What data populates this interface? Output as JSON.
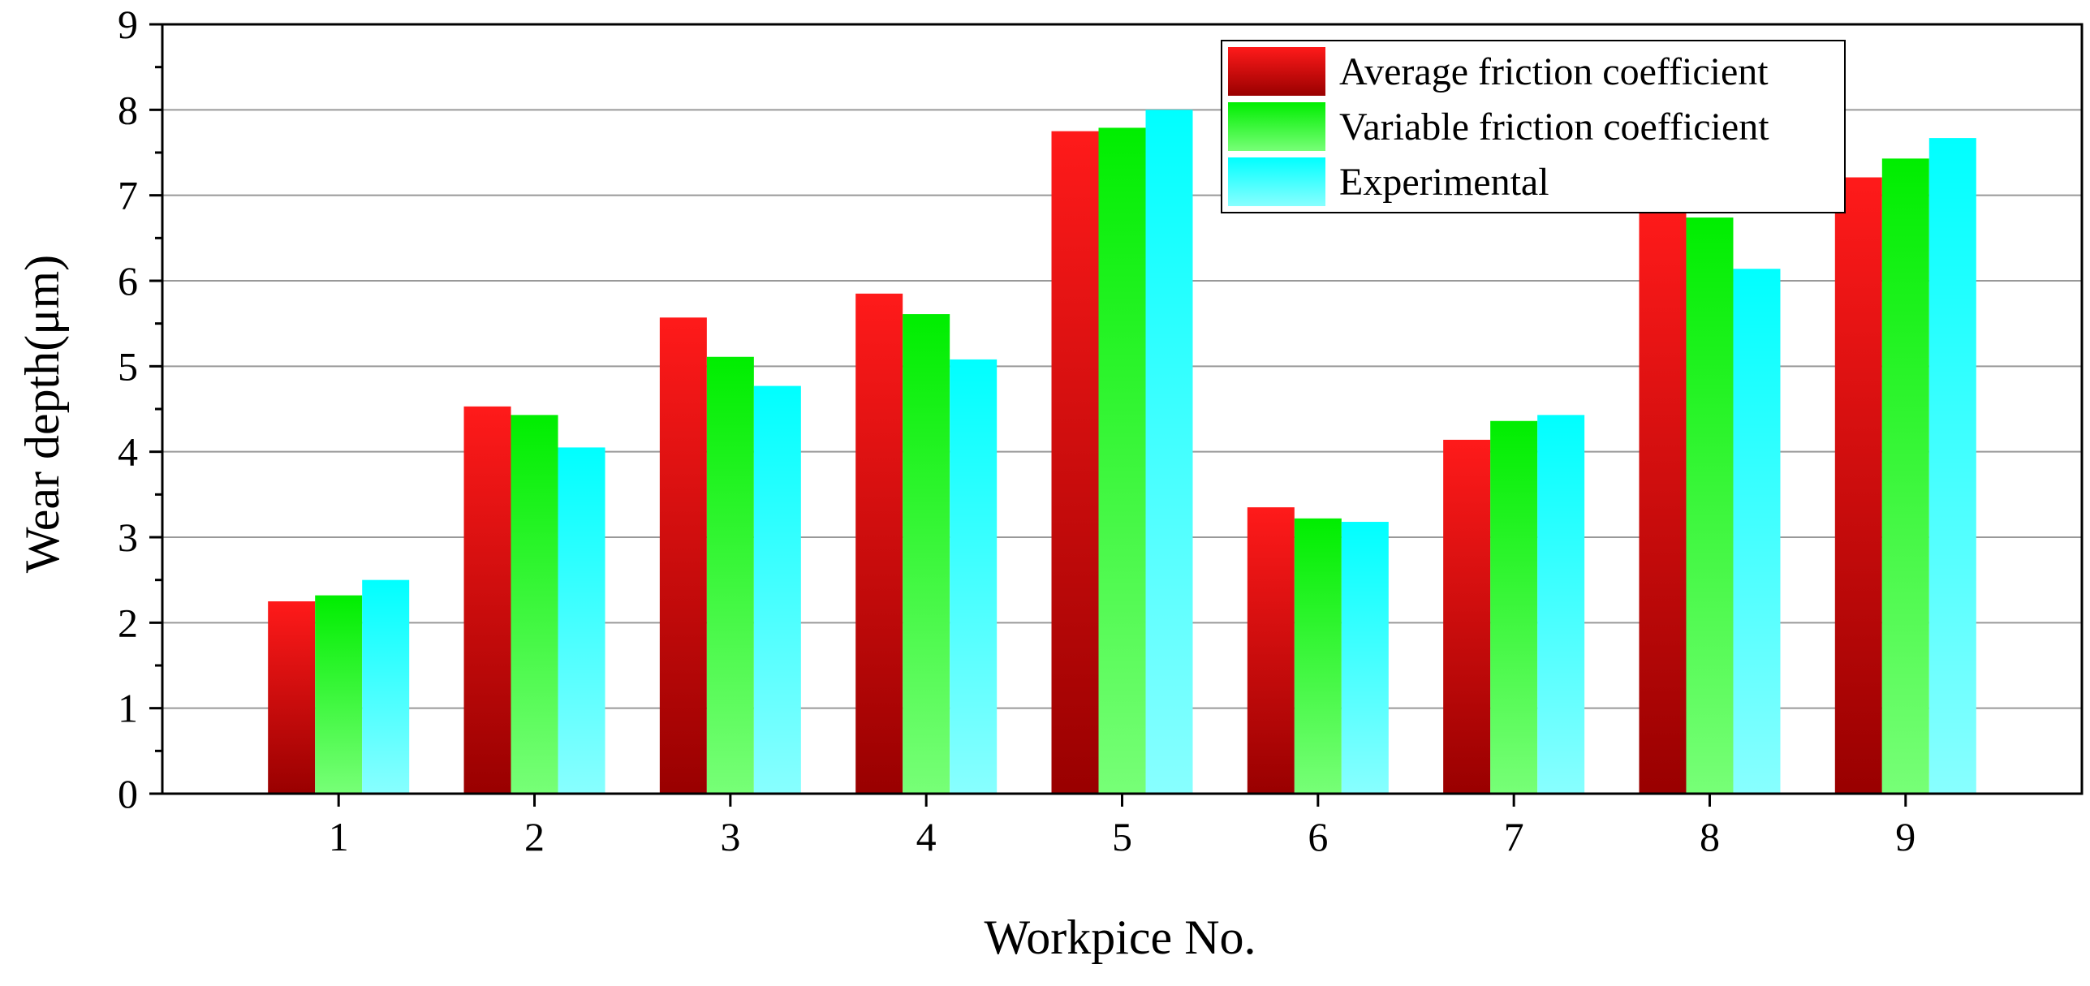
{
  "chart_data": {
    "type": "bar",
    "xlabel": "Workpice No.",
    "ylabel": "Wear depth(μm)",
    "categories": [
      "1",
      "2",
      "3",
      "4",
      "5",
      "6",
      "7",
      "8",
      "9"
    ],
    "ylim": [
      0,
      9
    ],
    "yticks": [
      "0",
      "1",
      "2",
      "3",
      "4",
      "5",
      "6",
      "7",
      "8",
      "9"
    ],
    "grid": true,
    "legend_position": "top-right",
    "series": [
      {
        "name": "Average friction coefficient",
        "values": [
          2.25,
          4.53,
          5.57,
          5.85,
          7.75,
          3.35,
          4.14,
          6.88,
          7.21
        ],
        "color_top": "#ff1a1a",
        "color_bottom": "#990000"
      },
      {
        "name": "Variable friction coefficient",
        "values": [
          2.32,
          4.43,
          5.11,
          5.61,
          7.79,
          3.22,
          4.36,
          6.74,
          7.43
        ],
        "color_top": "#00ee00",
        "color_bottom": "#77ff77"
      },
      {
        "name": "Experimental",
        "values": [
          2.5,
          4.05,
          4.77,
          5.08,
          8.0,
          3.18,
          4.43,
          6.14,
          7.67
        ],
        "color_top": "#00ffff",
        "color_bottom": "#88ffff"
      }
    ]
  }
}
